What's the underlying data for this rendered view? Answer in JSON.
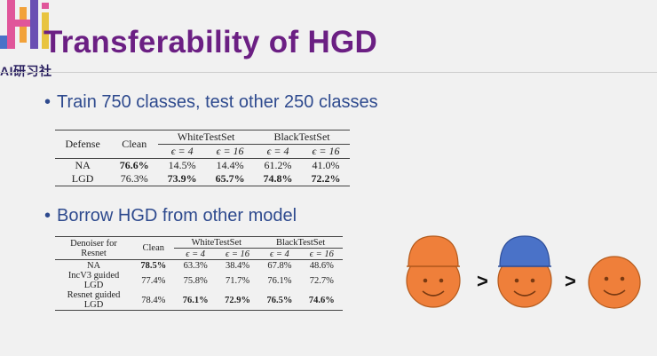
{
  "header": {
    "logo_icon": "ai-lab-logo-icon",
    "brand_text": "AI研习社",
    "title": "Transferability of HGD"
  },
  "bullets": [
    {
      "text": "Train 750 classes, test other 250 classes"
    },
    {
      "text": "Borrow HGD from other model"
    }
  ],
  "table1": {
    "col_defense": "Defense",
    "col_clean": "Clean",
    "group_white": "WhiteTestSet",
    "group_black": "BlackTestSet",
    "eps_4": "ϵ = 4",
    "eps_16": "ϵ = 16",
    "rows": [
      {
        "name": "NA",
        "clean": "76.6%",
        "w4": "14.5%",
        "w16": "14.4%",
        "b4": "61.2%",
        "b16": "41.0%"
      },
      {
        "name": "LGD",
        "clean": "76.3%",
        "w4": "73.9%",
        "w16": "65.7%",
        "b4": "74.8%",
        "b16": "72.2%"
      }
    ]
  },
  "table2": {
    "col_denoiser_l1": "Denoiser for",
    "col_denoiser_l2": "Resnet",
    "col_clean": "Clean",
    "group_white": "WhiteTestSet",
    "group_black": "BlackTestSet",
    "eps_4": "ϵ = 4",
    "eps_16": "ϵ = 16",
    "rows": [
      {
        "name_l1": "NA",
        "name_l2": "",
        "clean": "78.5%",
        "w4": "63.3%",
        "w16": "38.4%",
        "b4": "67.8%",
        "b16": "48.6%"
      },
      {
        "name_l1": "IncV3 guided",
        "name_l2": "LGD",
        "clean": "77.4%",
        "w4": "75.8%",
        "w16": "71.7%",
        "b4": "76.1%",
        "b16": "72.7%"
      },
      {
        "name_l1": "Resnet guided",
        "name_l2": "LGD",
        "clean": "78.4%",
        "w4": "76.1%",
        "w16": "72.9%",
        "b4": "76.5%",
        "b16": "74.6%"
      }
    ]
  },
  "illustration": {
    "gt_symbol_1": ">",
    "gt_symbol_2": ">",
    "face_color": "#ef7f3a",
    "orange_hat_color": "#ef7f3a",
    "blue_hat_color": "#4a72c8"
  }
}
